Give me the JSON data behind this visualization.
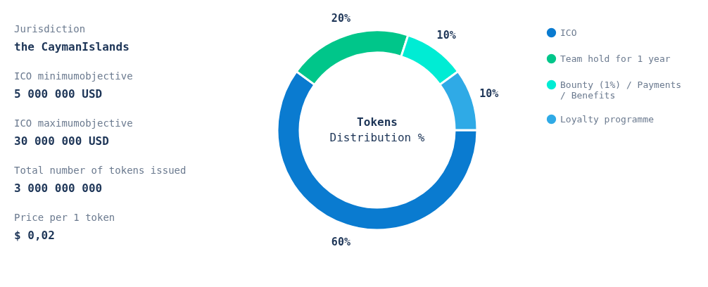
{
  "chart_data": {
    "type": "donut",
    "title": "Tokens",
    "subtitle": "Distribution %",
    "categories": [
      "ICO",
      "Team hold for 1 year",
      "Bounty (1%) / Payments / Benefits",
      "Loyalty programme"
    ],
    "values": [
      60,
      20,
      10,
      10
    ],
    "colors": [
      "#0a7bd0",
      "#00c68a",
      "#00ecd4",
      "#2faae6"
    ],
    "value_labels": [
      "60%",
      "20%",
      "10%",
      "10%"
    ],
    "legend": "right",
    "annotations": [
      "Jurisdiction",
      "the CaymanIslands",
      "ICO minimumobjective",
      "5 000 000 USD",
      "ICO maximumobjective",
      "30 000 000 USD",
      "Total number of tokens issued",
      "3 000 000 000",
      "Price per 1 token",
      "$ 0,02"
    ]
  }
}
